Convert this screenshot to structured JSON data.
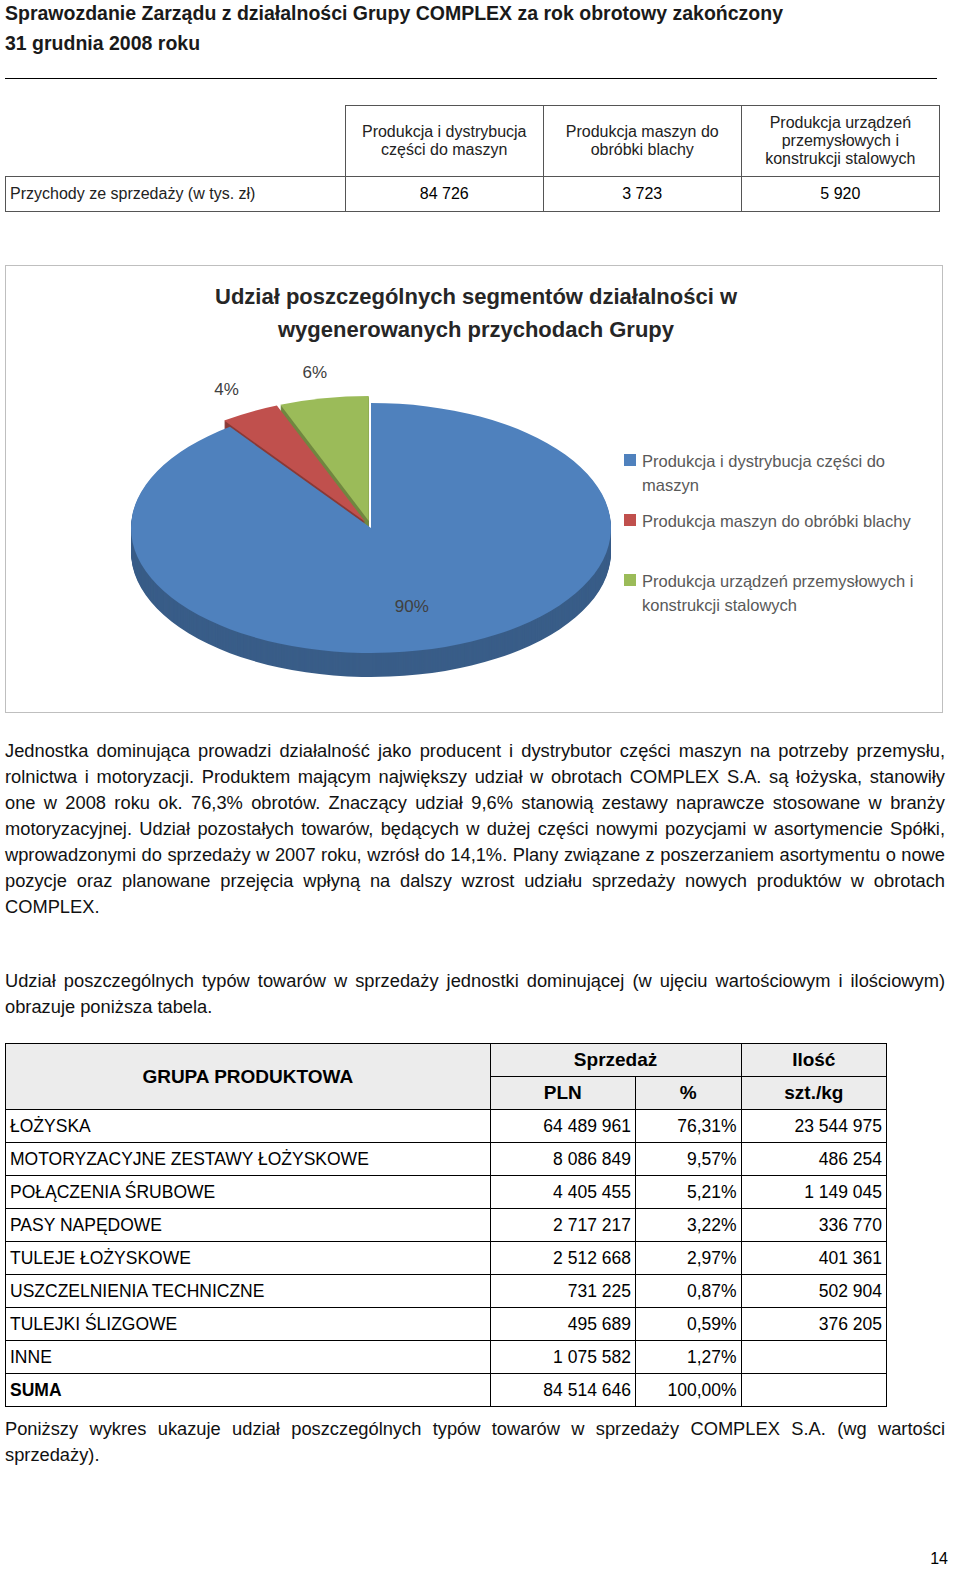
{
  "header": {
    "title": [
      "Sprawozdanie Zarządu z działalności Grupy COMPLEX za rok obrotowy zakończony",
      "31 grudnia 2008 roku"
    ]
  },
  "segments_table": {
    "columns": [
      "Produkcja i dystrybucja części do maszyn",
      "Produkcja maszyn do obróbki blachy",
      "Produkcja urządzeń przemysłowych i konstrukcji stalowych"
    ],
    "row_label": "Przychody ze sprzedaży (w tys. zł)",
    "values": [
      "84 726",
      "3 723",
      "5 920"
    ]
  },
  "chart_data": {
    "type": "pie",
    "title": "Udział poszczególnych segmentów działalności w wygenerowanych przychodach Grupy",
    "categories": [
      "Produkcja i dystrybucja części do maszyn",
      "Produkcja maszyn do obróbki blachy",
      "Produkcja urządzeń przemysłowych i konstrukcji stalowych"
    ],
    "values": [
      90,
      4,
      6
    ],
    "value_labels": [
      "90%",
      "4%",
      "6%"
    ],
    "colors": [
      "#4f81bd",
      "#c0504d",
      "#9bbb59"
    ],
    "data_labels": true,
    "legend": "right"
  },
  "paragraphs": [
    "Jednostka dominująca prowadzi działalność jako producent i dystrybutor części maszyn na potrzeby przemysłu, rolnictwa i motoryzacji. Produktem mającym największy udział w obrotach COMPLEX S.A. są łożyska, stanowiły one w 2008 roku ok. 76,3% obrotów. Znaczący udział 9,6% stanowią zestawy naprawcze stosowane w branży motoryzacyjnej. Udział pozostałych towarów, będących w dużej części nowymi pozycjami w asortymencie Spółki, wprowadzonymi do sprzedaży w 2007 roku, wzrósł do 14,1%. Plany związane z poszerzaniem asortymentu o nowe pozycje oraz planowane przejęcia wpłyną na dalszy wzrost udziału sprzedaży nowych produktów w obrotach COMPLEX.",
    "Udział poszczególnych typów towarów w sprzedaży jednostki dominującej (w ujęciu wartościowym i ilościowym) obrazuje poniższa tabela."
  ],
  "products_table": {
    "header": {
      "group": "GRUPA PRODUKTOWA",
      "sales": "Sprzedaż",
      "quantity": "Ilość",
      "pln": "PLN",
      "percent": "%",
      "unit": "szt./kg"
    },
    "rows": [
      [
        "ŁOŻYSKA",
        "64 489 961",
        "76,31%",
        "23 544 975"
      ],
      [
        "MOTORYZACYJNE ZESTAWY ŁOŻYSKOWE",
        "8 086 849",
        "9,57%",
        "486 254"
      ],
      [
        "POŁĄCZENIA ŚRUBOWE",
        "4 405 455",
        "5,21%",
        "1 149 045"
      ],
      [
        "PASY NAPĘDOWE",
        "2 717 217",
        "3,22%",
        "336 770"
      ],
      [
        "TULEJE ŁOŻYSKOWE",
        "2 512 668",
        "2,97%",
        "401 361"
      ],
      [
        "USZCZELNIENIA TECHNICZNE",
        "731 225",
        "0,87%",
        "502 904"
      ],
      [
        "TULEJKI ŚLIZGOWE",
        "495 689",
        "0,59%",
        "376 205"
      ],
      [
        "INNE",
        "1 075 582",
        "1,27%"
      ],
      [
        "SUMA",
        "84 514 646",
        "100,00%"
      ]
    ]
  },
  "footer": {
    "caption": "Poniższy wykres ukazuje udział poszczególnych typów towarów w sprzedaży COMPLEX S.A. (wg wartości sprzedaży).",
    "page": "14"
  }
}
